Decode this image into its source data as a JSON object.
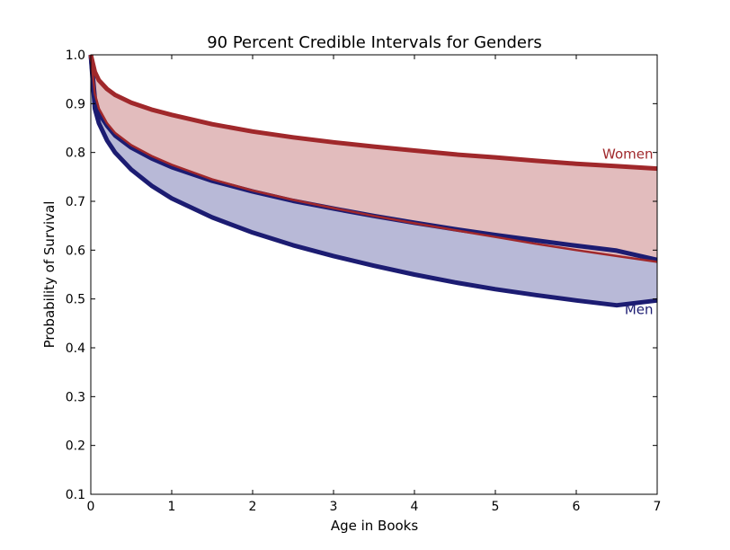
{
  "chart_data": {
    "type": "area",
    "title": "90 Percent Credible Intervals for Genders",
    "xlabel": "Age in Books",
    "ylabel": "Probability of Survival",
    "xlim": [
      0,
      7
    ],
    "ylim": [
      0.1,
      1.0
    ],
    "xticks": [
      "0",
      "1",
      "2",
      "3",
      "4",
      "5",
      "6",
      "7"
    ],
    "yticks": [
      "0.1",
      "0.2",
      "0.3",
      "0.4",
      "0.5",
      "0.6",
      "0.7",
      "0.8",
      "0.9",
      "1.0"
    ],
    "grid": false,
    "series": [
      {
        "name": "Women",
        "color": "#a0282b",
        "fill_color": "#e2bcbd",
        "x": [
          0,
          0.05,
          0.1,
          0.2,
          0.3,
          0.5,
          0.75,
          1,
          1.5,
          2,
          2.5,
          3,
          3.5,
          4,
          4.5,
          5,
          5.5,
          6,
          6.5,
          7
        ],
        "upper": [
          1.0,
          0.965,
          0.948,
          0.93,
          0.918,
          0.902,
          0.888,
          0.877,
          0.858,
          0.843,
          0.831,
          0.821,
          0.812,
          0.804,
          0.796,
          0.79,
          0.783,
          0.777,
          0.772,
          0.767
        ],
        "lower": [
          1.0,
          0.92,
          0.89,
          0.86,
          0.84,
          0.815,
          0.793,
          0.775,
          0.745,
          0.722,
          0.703,
          0.686,
          0.67,
          0.655,
          0.641,
          0.627,
          0.613,
          0.6,
          0.588,
          0.576
        ]
      },
      {
        "name": "Men",
        "color": "#1c1c72",
        "fill_color": "#b8b9d7",
        "x": [
          0,
          0.05,
          0.1,
          0.2,
          0.3,
          0.5,
          0.75,
          1,
          1.5,
          2,
          2.5,
          3,
          3.5,
          4,
          4.5,
          5,
          5.5,
          6,
          6.5,
          7
        ],
        "upper": [
          1.0,
          0.91,
          0.88,
          0.855,
          0.835,
          0.81,
          0.788,
          0.77,
          0.742,
          0.72,
          0.701,
          0.685,
          0.67,
          0.656,
          0.643,
          0.631,
          0.62,
          0.609,
          0.599,
          0.58
        ],
        "lower": [
          1.0,
          0.89,
          0.86,
          0.825,
          0.8,
          0.765,
          0.732,
          0.706,
          0.667,
          0.636,
          0.61,
          0.588,
          0.568,
          0.55,
          0.534,
          0.52,
          0.508,
          0.497,
          0.487,
          0.497
        ]
      }
    ]
  }
}
